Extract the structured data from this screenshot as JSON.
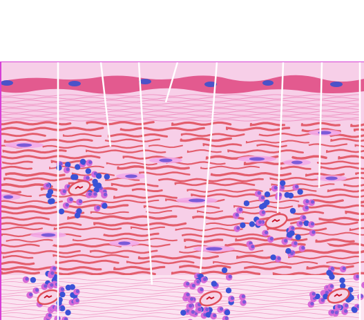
{
  "figure": {
    "alt": "",
    "colors": {
      "background": "#ffffff",
      "frame": "#d63fd6",
      "tissue_base": "#f7cfe8",
      "tissue_light": "#fbe3f1",
      "tissue_strip": "#e35a8f",
      "fiber_red": "#e0505e",
      "fiber_pink": "#eb7ab4",
      "nucleus_blue": "#3a52d6",
      "nucleus_purple": "#7a5ad8",
      "cell_pink": "#d76ad8",
      "cell_light": "#f2a8e8",
      "leader_line": "#ffffff"
    },
    "leader_lines_count": 8,
    "cell_clusters": [
      {
        "name": "cluster-left-middle"
      },
      {
        "name": "cluster-right-middle"
      },
      {
        "name": "cluster-bottom-left"
      },
      {
        "name": "cluster-bottom-center"
      },
      {
        "name": "cluster-bottom-right"
      }
    ]
  }
}
